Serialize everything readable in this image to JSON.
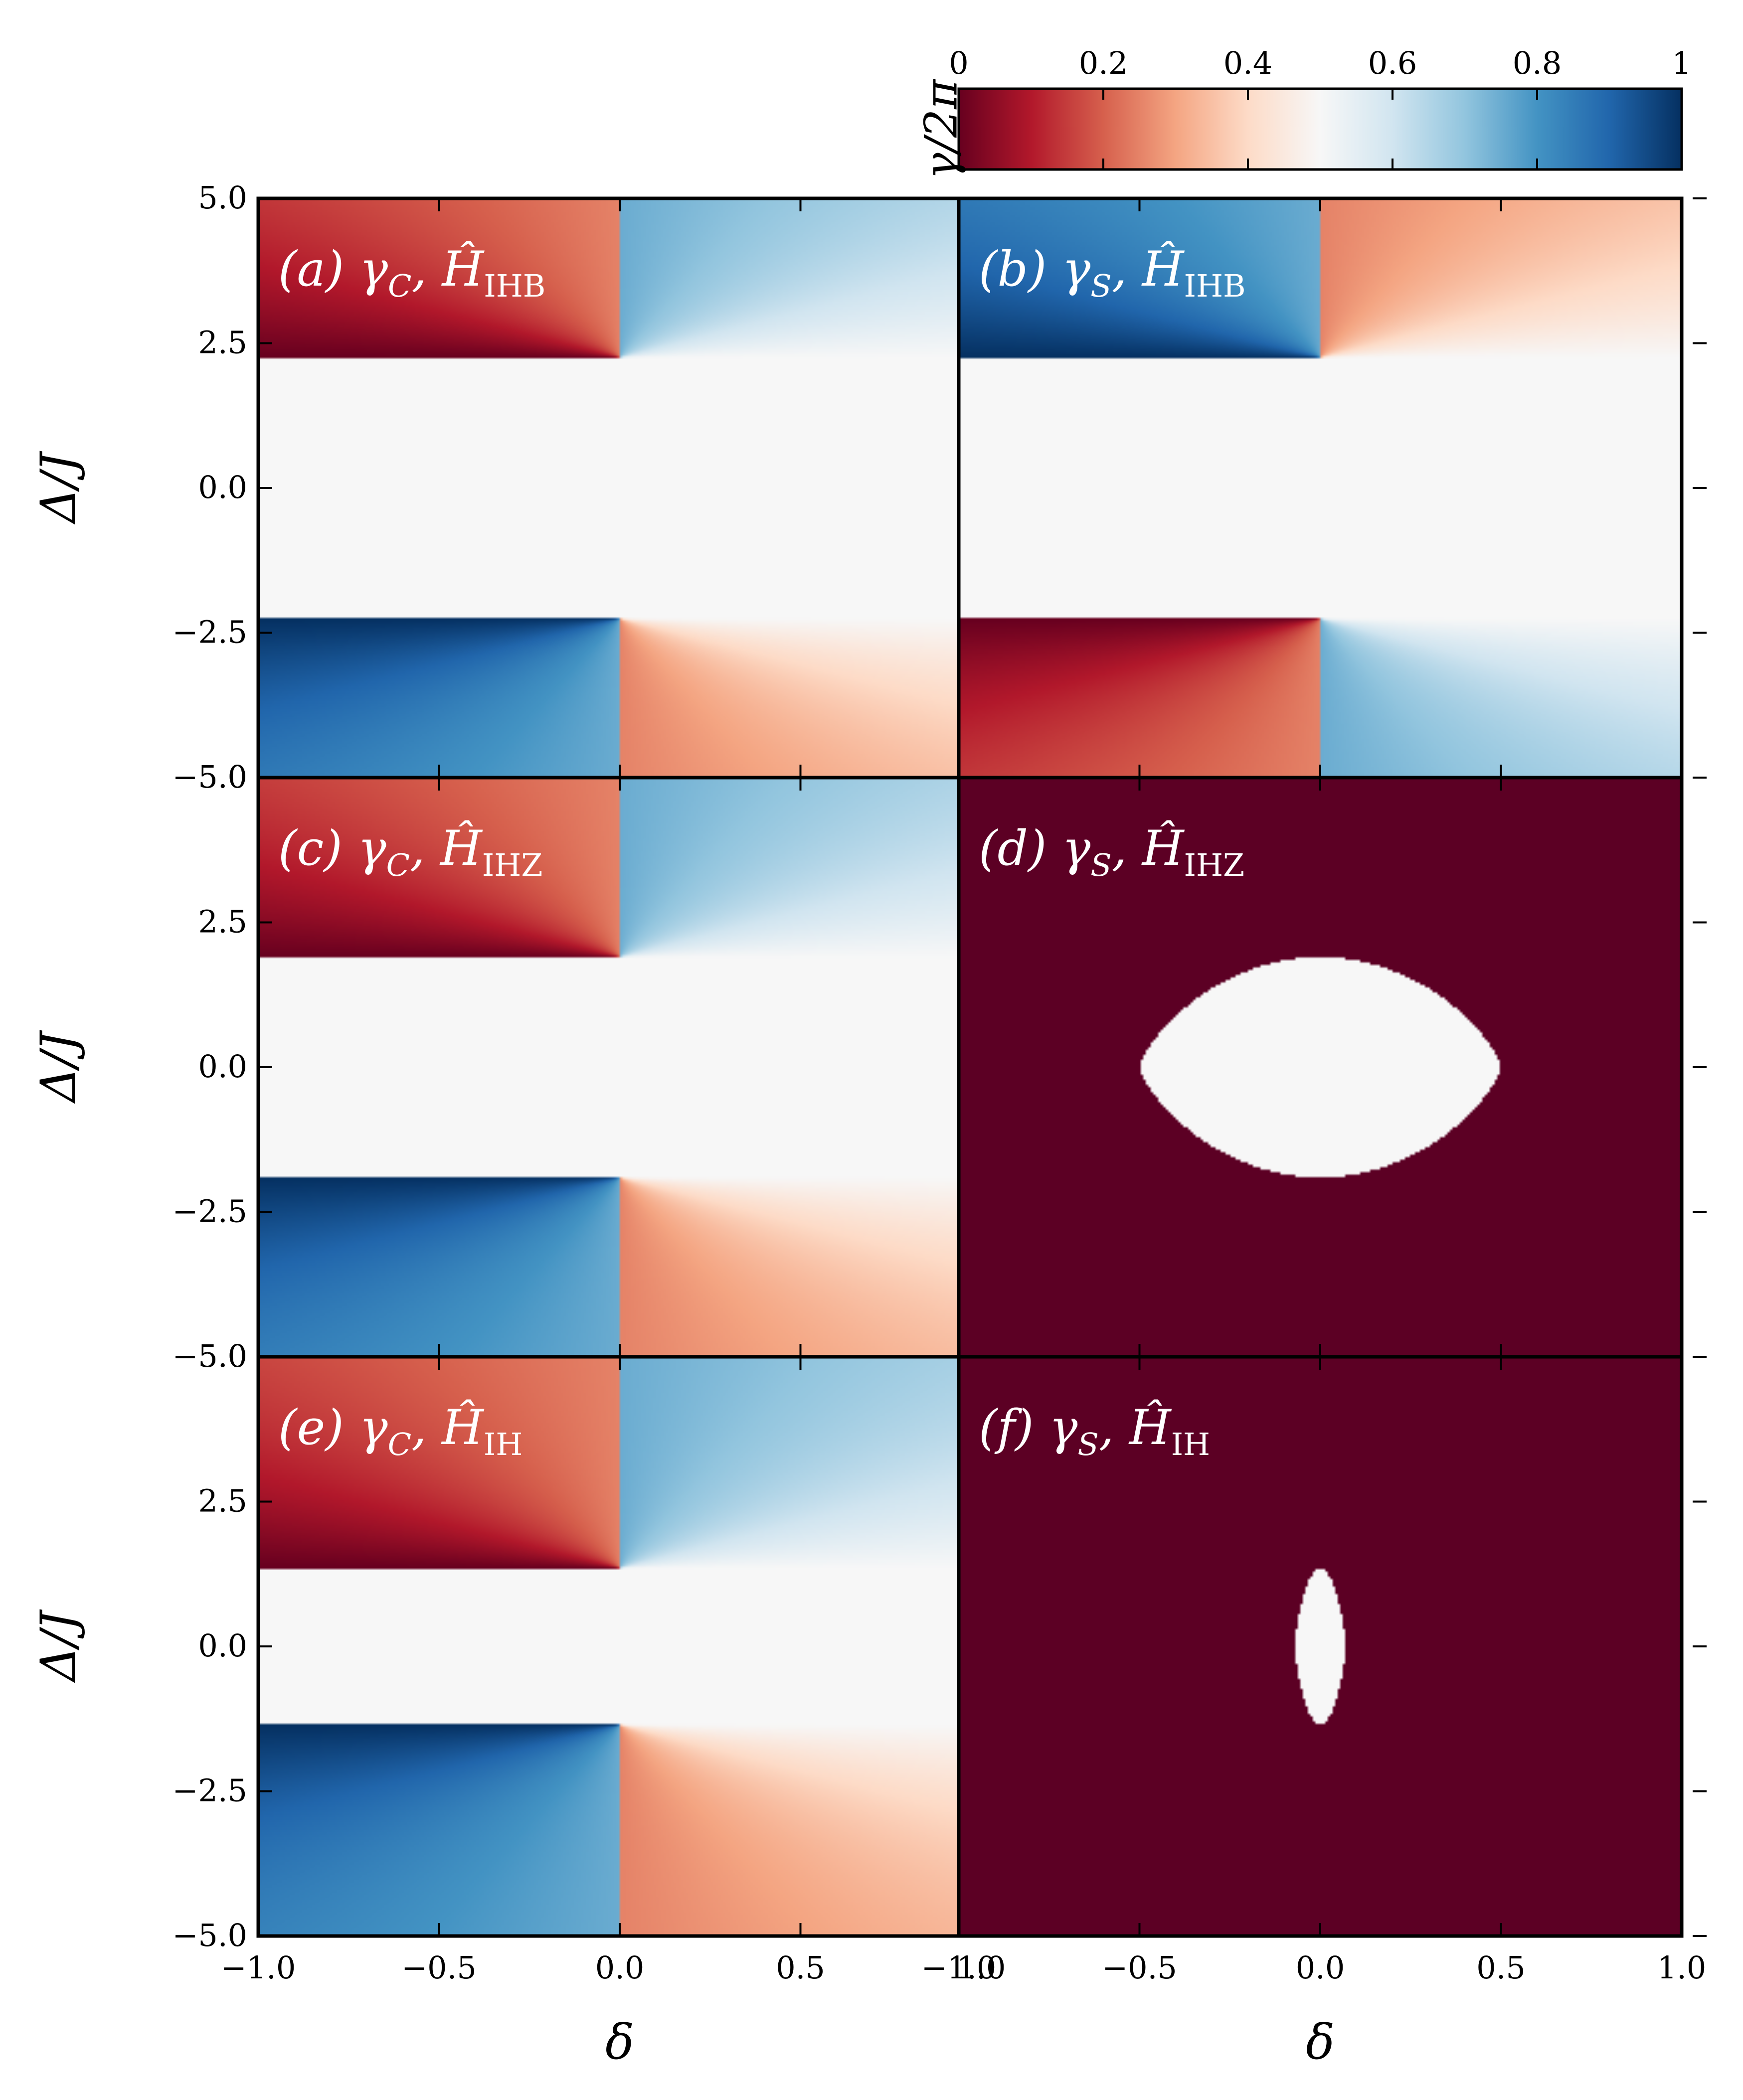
{
  "chart_data": {
    "type": "heatmap",
    "colormap": {
      "name": "RdBu",
      "stops": [
        "#67001f",
        "#b2182b",
        "#d6604d",
        "#f4a582",
        "#fddbc7",
        "#f7f7f7",
        "#d1e5f0",
        "#92c5de",
        "#4393c3",
        "#2166ac",
        "#053061"
      ]
    },
    "colorbar": {
      "label": "γ/2π",
      "ticks": [
        "0",
        "0.2",
        "0.4",
        "0.6",
        "0.8",
        "1"
      ],
      "range": [
        0,
        1
      ]
    },
    "xlabel": "δ",
    "ylabel": "Δ/J",
    "xlim": [
      -1.0,
      1.0
    ],
    "ylim": [
      -5.0,
      5.0
    ],
    "x_ticks": [
      "−1.0",
      "−0.5",
      "0.0",
      "0.5",
      "1.0"
    ],
    "y_ticks": [
      "5.0",
      "2.5",
      "0.0",
      "−2.5",
      "−5.0"
    ],
    "panels": [
      {
        "label_prefix": "(a)",
        "label_math": "γ_C, Ĥ_IHB",
        "kind": "continuous",
        "sign": 1,
        "singular_dy": 2.25
      },
      {
        "label_prefix": "(b)",
        "label_math": "γ_S, Ĥ_IHB",
        "kind": "continuous",
        "sign": -1,
        "singular_dy": 2.25
      },
      {
        "label_prefix": "(c)",
        "label_math": "γ_C, Ĥ_IHZ",
        "kind": "continuous",
        "sign": 1,
        "singular_dy": 1.9
      },
      {
        "label_prefix": "(d)",
        "label_math": "γ_S, Ĥ_IHZ",
        "kind": "binary",
        "region_halfwidth": 0.5,
        "region_halfheight": 1.9
      },
      {
        "label_prefix": "(e)",
        "label_math": "γ_C, Ĥ_IH",
        "kind": "continuous",
        "sign": 1,
        "singular_dy": 1.35
      },
      {
        "label_prefix": "(f)",
        "label_math": "γ_S, Ĥ_IH",
        "kind": "binary",
        "region_halfwidth": 0.07,
        "region_halfheight": 1.35
      }
    ],
    "panel_labels": [
      {
        "prefix": "(a)",
        "sym": "γ",
        "sub": "C",
        "ham": "IHB"
      },
      {
        "prefix": "(b)",
        "sym": "γ",
        "sub": "S",
        "ham": "IHB"
      },
      {
        "prefix": "(c)",
        "sym": "γ",
        "sub": "C",
        "ham": "IHZ"
      },
      {
        "prefix": "(d)",
        "sym": "γ",
        "sub": "S",
        "ham": "IHZ"
      },
      {
        "prefix": "(e)",
        "sym": "γ",
        "sub": "C",
        "ham": "IH"
      },
      {
        "prefix": "(f)",
        "sym": "γ",
        "sub": "S",
        "ham": "IH"
      }
    ],
    "binary_colors": {
      "outside": "#5c0024",
      "inside": "#f7f7f7"
    }
  }
}
